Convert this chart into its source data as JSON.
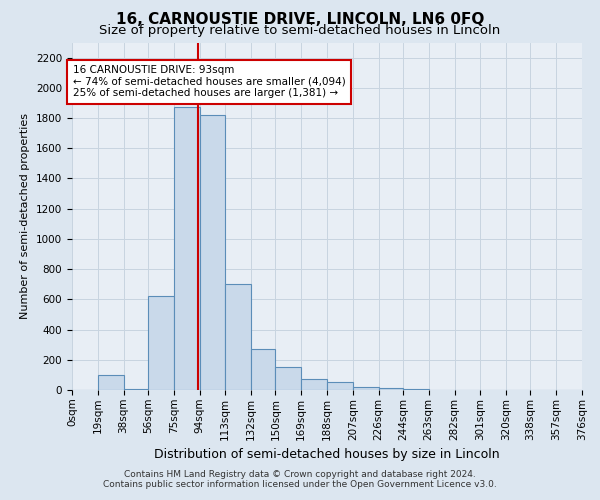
{
  "title": "16, CARNOUSTIE DRIVE, LINCOLN, LN6 0FQ",
  "subtitle": "Size of property relative to semi-detached houses in Lincoln",
  "xlabel": "Distribution of semi-detached houses by size in Lincoln",
  "ylabel": "Number of semi-detached properties",
  "footer_line1": "Contains HM Land Registry data © Crown copyright and database right 2024.",
  "footer_line2": "Contains public sector information licensed under the Open Government Licence v3.0.",
  "annotation_line1": "16 CARNOUSTIE DRIVE: 93sqm",
  "annotation_line2": "← 74% of semi-detached houses are smaller (4,094)",
  "annotation_line3": "25% of semi-detached houses are larger (1,381) →",
  "bar_color": "#c9d9ea",
  "bar_edge_color": "#5b8db8",
  "marker_color": "#cc0000",
  "marker_value": 93,
  "bin_edges": [
    0,
    19,
    38,
    56,
    75,
    94,
    113,
    132,
    150,
    169,
    188,
    207,
    226,
    244,
    263,
    282,
    301,
    320,
    338,
    357,
    376
  ],
  "bin_labels": [
    "0sqm",
    "19sqm",
    "38sqm",
    "56sqm",
    "75sqm",
    "94sqm",
    "113sqm",
    "132sqm",
    "150sqm",
    "169sqm",
    "188sqm",
    "207sqm",
    "226sqm",
    "244sqm",
    "263sqm",
    "282sqm",
    "301sqm",
    "320sqm",
    "338sqm",
    "357sqm",
    "376sqm"
  ],
  "bar_heights": [
    3,
    100,
    5,
    620,
    1870,
    1820,
    700,
    270,
    150,
    70,
    50,
    20,
    10,
    5,
    0,
    0,
    0,
    0,
    0,
    0
  ],
  "ylim": [
    0,
    2300
  ],
  "yticks": [
    0,
    200,
    400,
    600,
    800,
    1000,
    1200,
    1400,
    1600,
    1800,
    2000,
    2200
  ],
  "background_color": "#dce6f0",
  "plot_bg_color": "#e8eef5",
  "grid_color": "#c8d4e0",
  "title_fontsize": 11,
  "subtitle_fontsize": 9.5,
  "xlabel_fontsize": 9,
  "ylabel_fontsize": 8,
  "tick_fontsize": 7.5,
  "annotation_fontsize": 7.5,
  "footer_fontsize": 6.5
}
